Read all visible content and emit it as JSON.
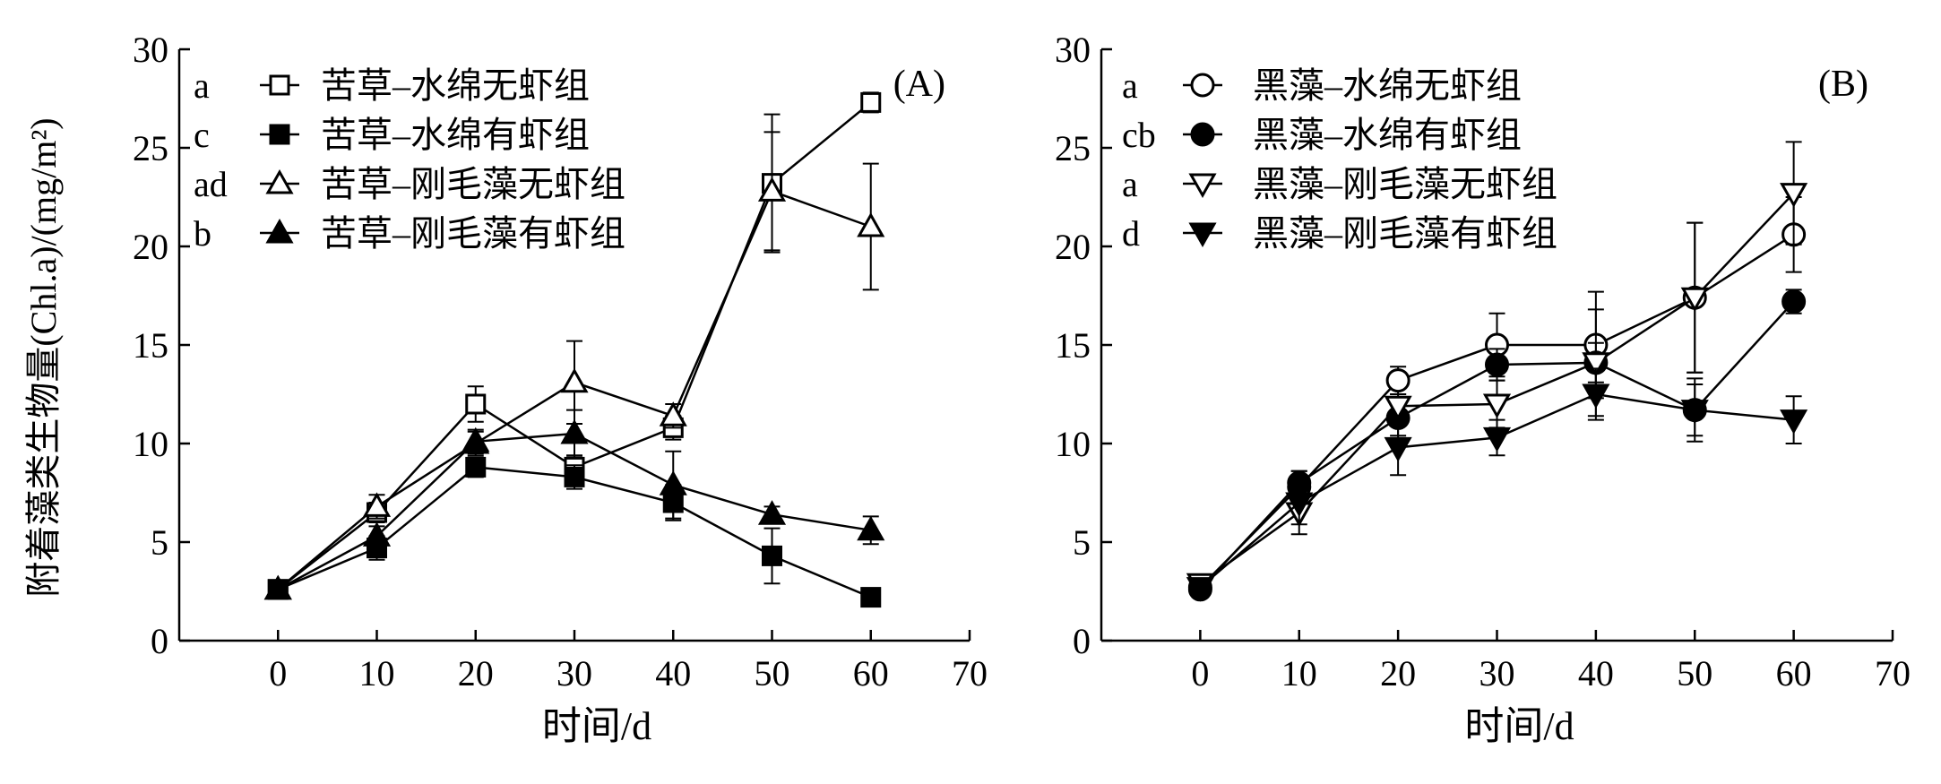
{
  "figure": {
    "ylabel": "附着藻类生物量(Chl.a)/(mg/m²)"
  },
  "chart_data": [
    {
      "type": "line",
      "panel_label": "(A)",
      "xlabel": "时间/d",
      "xlim": [
        -10,
        70
      ],
      "xticks": [
        0,
        10,
        20,
        30,
        40,
        50,
        60,
        70
      ],
      "ylim": [
        0,
        30
      ],
      "yticks": [
        0,
        5,
        10,
        15,
        20,
        25,
        30
      ],
      "grid": false,
      "legend_position": "top-left",
      "x": [
        0,
        10,
        20,
        30,
        40,
        50,
        60
      ],
      "series": [
        {
          "name": "苦草–水绵无虾组",
          "letter": "a",
          "marker": "square-open",
          "values": [
            2.6,
            6.5,
            12.0,
            8.8,
            10.8,
            23.2,
            27.3
          ],
          "errors": [
            0.3,
            0.5,
            0.9,
            0.6,
            0.6,
            3.5,
            0.5
          ]
        },
        {
          "name": "苦草–水绵有虾组",
          "letter": "c",
          "marker": "square-filled",
          "values": [
            2.6,
            4.7,
            8.8,
            8.3,
            7.0,
            4.3,
            2.2
          ],
          "errors": [
            0.3,
            0.6,
            0.5,
            0.6,
            0.9,
            1.4,
            0.2
          ]
        },
        {
          "name": "苦草–刚毛藻无虾组",
          "letter": "ad",
          "marker": "triangle-up-open",
          "values": [
            2.6,
            6.8,
            10.0,
            13.1,
            11.4,
            22.8,
            21.0
          ],
          "errors": [
            0.3,
            0.6,
            0.6,
            2.1,
            0.6,
            3.0,
            3.2
          ]
        },
        {
          "name": "苦草–刚毛藻有虾组",
          "letter": "b",
          "marker": "triangle-up-filled",
          "values": [
            2.6,
            5.3,
            10.1,
            10.5,
            7.9,
            6.4,
            5.6
          ],
          "errors": [
            0.3,
            0.5,
            0.6,
            1.2,
            1.7,
            0.4,
            0.7
          ]
        }
      ]
    },
    {
      "type": "line",
      "panel_label": "(B)",
      "xlabel": "时间/d",
      "xlim": [
        -10,
        70
      ],
      "xticks": [
        0,
        10,
        20,
        30,
        40,
        50,
        60,
        70
      ],
      "ylim": [
        0,
        30
      ],
      "yticks": [
        0,
        5,
        10,
        15,
        20,
        25,
        30
      ],
      "grid": false,
      "legend_position": "top-left",
      "x": [
        0,
        10,
        20,
        30,
        40,
        50,
        60
      ],
      "series": [
        {
          "name": "黑藻–水绵无虾组",
          "letter": "a",
          "marker": "circle-open",
          "values": [
            2.7,
            7.8,
            13.2,
            15.0,
            15.0,
            17.4,
            20.6
          ],
          "errors": [
            0.3,
            0.8,
            0.7,
            1.6,
            2.7,
            3.8,
            1.9
          ]
        },
        {
          "name": "黑藻–水绵有虾组",
          "letter": "cb",
          "marker": "circle-filled",
          "values": [
            2.6,
            8.0,
            11.3,
            14.0,
            14.1,
            11.7,
            17.2
          ],
          "errors": [
            0.3,
            0.6,
            0.9,
            0.8,
            1.0,
            1.6,
            0.6
          ]
        },
        {
          "name": "黑藻–刚毛藻无虾组",
          "letter": "a",
          "marker": "triangle-down-open",
          "values": [
            2.9,
            6.5,
            11.9,
            12.0,
            14.1,
            17.4,
            22.7
          ],
          "errors": [
            0.3,
            1.1,
            0.6,
            1.2,
            2.7,
            3.8,
            2.6
          ]
        },
        {
          "name": "黑藻–刚毛藻有虾组",
          "letter": "d",
          "marker": "triangle-down-filled",
          "values": [
            2.7,
            7.0,
            9.8,
            10.3,
            12.5,
            11.7,
            11.2
          ],
          "errors": [
            0.3,
            1.1,
            1.4,
            0.9,
            1.3,
            1.3,
            1.2
          ]
        }
      ]
    }
  ]
}
